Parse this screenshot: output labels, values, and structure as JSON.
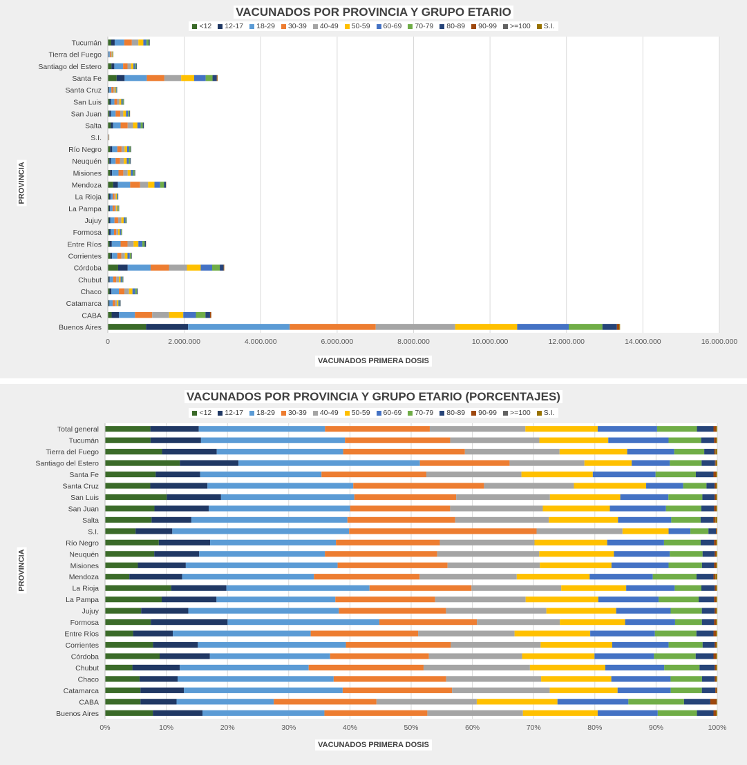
{
  "legend": {
    "labels": [
      "<12",
      "12-17",
      "18-29",
      "30-39",
      "40-49",
      "50-59",
      "60-69",
      "70-79",
      "80-89",
      "90-99",
      ">=100",
      "S.I."
    ],
    "colors": [
      "#3b6b29",
      "#203864",
      "#5b9bd5",
      "#ed7d31",
      "#a5a5a5",
      "#ffc000",
      "#4472c4",
      "#70ad47",
      "#264478",
      "#9e480e",
      "#636363",
      "#997300"
    ]
  },
  "chart_data": [
    {
      "type": "bar",
      "orientation": "horizontal",
      "stacked": true,
      "title": "VACUNADOS POR PROVINCIA Y GRUPO ETARIO",
      "xlabel": "VACUNADOS PRIMERA  DOSIS",
      "ylabel": "PROVINCIA",
      "xlim": [
        0,
        16000000
      ],
      "xticks": [
        0,
        2000000,
        4000000,
        6000000,
        8000000,
        10000000,
        12000000,
        14000000,
        16000000
      ],
      "xtick_labels": [
        "0",
        "2.000.000",
        "4.000.000",
        "6.000.000",
        "8.000.000",
        "10.000.000",
        "12.000.000",
        "14.000.000",
        "16.000.000"
      ],
      "categories": [
        "Tucumán",
        "Tierra del Fuego",
        "Santiago del Estero",
        "Santa Fe",
        "Santa Cruz",
        "San Luis",
        "San Juan",
        "Salta",
        "S.I.",
        "Río Negro",
        "Neuquén",
        "Misiones",
        "Mendoza",
        "La Rioja",
        "La Pampa",
        "Jujuy",
        "Formosa",
        "Entre Ríos",
        "Corrientes",
        "Córdoba",
        "Chubut",
        "Chaco",
        "Catamarca",
        "CABA",
        "Buenos Aires"
      ],
      "series": [
        {
          "name": "<12",
          "values": [
            90000,
            12000,
            95000,
            230000,
            17000,
            45000,
            40000,
            75000,
            3000,
            60000,
            40000,
            60000,
            140000,
            35000,
            30000,
            30000,
            35000,
            45000,
            65000,
            270000,
            20000,
            45000,
            20000,
            100000,
            1000000
          ]
        },
        {
          "name": "12-17",
          "values": [
            90000,
            10000,
            75000,
            210000,
            22000,
            38000,
            45000,
            60000,
            3000,
            55000,
            40000,
            50000,
            125000,
            35000,
            30000,
            35000,
            37000,
            60000,
            45000,
            250000,
            30000,
            50000,
            23000,
            190000,
            1100000
          ]
        },
        {
          "name": "18-29",
          "values": [
            250000,
            30000,
            230000,
            580000,
            55000,
            90000,
            120000,
            200000,
            12000,
            135000,
            125000,
            170000,
            320000,
            60000,
            65000,
            110000,
            90000,
            230000,
            140000,
            600000,
            90000,
            195000,
            85000,
            420000,
            2660000
          ]
        },
        {
          "name": "30-39",
          "values": [
            200000,
            28000,
            115000,
            460000,
            50000,
            70000,
            120000,
            185000,
            9000,
            110000,
            115000,
            125000,
            260000,
            45000,
            55000,
            95000,
            60000,
            180000,
            105000,
            480000,
            80000,
            145000,
            60000,
            450000,
            2250000
          ]
        },
        {
          "name": "40-49",
          "values": [
            170000,
            25000,
            95000,
            440000,
            35000,
            60000,
            80000,
            140000,
            5000,
            80000,
            100000,
            115000,
            210000,
            35000,
            40000,
            85000,
            50000,
            160000,
            90000,
            470000,
            70000,
            120000,
            50000,
            445000,
            2080000
          ]
        },
        {
          "name": "50-59",
          "values": [
            130000,
            18000,
            60000,
            340000,
            30000,
            50000,
            70000,
            115000,
            3000,
            65000,
            75000,
            80000,
            165000,
            25000,
            35000,
            60000,
            42000,
            125000,
            70000,
            360000,
            45000,
            90000,
            40000,
            370000,
            1620000
          ]
        },
        {
          "name": "60-69",
          "values": [
            80000,
            10000,
            45000,
            300000,
            20000,
            35000,
            55000,
            85000,
            2000,
            55000,
            55000,
            60000,
            150000,
            20000,
            20000,
            45000,
            32000,
            105000,
            60000,
            300000,
            40000,
            75000,
            30000,
            330000,
            1350000
          ]
        },
        {
          "name": "70-79",
          "values": [
            60000,
            8000,
            30000,
            180000,
            12000,
            25000,
            35000,
            55000,
            1000,
            35000,
            35000,
            40000,
            100000,
            13000,
            15000,
            25000,
            20000,
            60000,
            35000,
            200000,
            20000,
            40000,
            18000,
            250000,
            880000
          ]
        },
        {
          "name": "80-89",
          "values": [
            25000,
            4000,
            15000,
            110000,
            5000,
            10000,
            15000,
            25000,
            300,
            15000,
            15000,
            15000,
            50000,
            5000,
            6000,
            10000,
            8000,
            30000,
            15000,
            100000,
            10000,
            20000,
            8000,
            120000,
            380000
          ]
        },
        {
          "name": "90-99",
          "values": [
            2000,
            300,
            1000,
            15000,
            500,
            800,
            1500,
            3000,
            30,
            1500,
            1200,
            1500,
            5000,
            500,
            800,
            1000,
            800,
            4000,
            1500,
            13000,
            1000,
            2000,
            800,
            30000,
            60000
          ]
        },
        {
          "name": ">=100",
          "values": [
            100,
            20,
            50,
            500,
            20,
            30,
            50,
            100,
            2,
            50,
            50,
            50,
            200,
            20,
            30,
            50,
            30,
            100,
            50,
            500,
            30,
            50,
            20,
            1000,
            2000
          ]
        },
        {
          "name": "S.I.",
          "values": [
            1000,
            500,
            500,
            6000,
            300,
            500,
            700,
            1500,
            20,
            600,
            400,
            600,
            3000,
            300,
            300,
            500,
            400,
            1500,
            800,
            5000,
            300,
            500,
            200,
            2000,
            20000
          ]
        }
      ]
    },
    {
      "type": "bar",
      "orientation": "horizontal",
      "stacked": true,
      "normalized": "percent",
      "title": "VACUNADOS POR PROVINCIA Y GRUPO ETARIO (PORCENTAJES)",
      "xlabel": "VACUNADOS PRIMERA  DOSIS",
      "ylabel": "PROVINCIA",
      "xlim": [
        0,
        100
      ],
      "xticks": [
        0,
        10,
        20,
        30,
        40,
        50,
        60,
        70,
        80,
        90,
        100
      ],
      "xtick_labels": [
        "0%",
        "10%",
        "20%",
        "30%",
        "40%",
        "50%",
        "60%",
        "70%",
        "80%",
        "90%",
        "100%"
      ],
      "categories": [
        "Total general",
        "Tucumán",
        "Tierra del Fuego",
        "Santiago del Estero",
        "Santa Fe",
        "Santa Cruz",
        "San Luis",
        "San Juan",
        "Salta",
        "S.I.",
        "Río Negro",
        "Neuquén",
        "Misiones",
        "Mendoza",
        "La Rioja",
        "La Pampa",
        "Jujuy",
        "Formosa",
        "Entre Ríos",
        "Corrientes",
        "Córdoba",
        "Chubut",
        "Chaco",
        "Catamarca",
        "CABA",
        "Buenos Aires"
      ],
      "series": [
        {
          "name": "<12",
          "values": [
            7.4,
            7.4,
            9.7,
            10.6,
            8.3,
            7.2,
            10.0,
            8.1,
            7.6,
            4.9,
            8.8,
            8.1,
            5.4,
            4.0,
            10.9,
            9.2,
            5.9,
            7.5,
            4.6,
            7.9,
            8.9,
            4.5,
            5.7,
            5.8,
            5.8,
            7.8
          ]
        },
        {
          "name": "12-17",
          "values": [
            7.9,
            8.2,
            9.3,
            8.3,
            7.3,
            9.1,
            8.8,
            8.9,
            6.5,
            5.9,
            8.4,
            7.4,
            7.9,
            8.7,
            9.1,
            8.9,
            7.7,
            12.6,
            6.5,
            7.4,
            8.2,
            7.8,
            6.3,
            7.1,
            5.9,
            8.1
          ]
        },
        {
          "name": "18-29",
          "values": [
            20.6,
            23.4,
            21.5,
            25.7,
            19.9,
            23.2,
            21.6,
            23.2,
            25.5,
            28.4,
            20.6,
            20.7,
            25.0,
            21.7,
            23.6,
            19.3,
            24.6,
            24.9,
            22.6,
            24.4,
            19.6,
            21.2,
            25.8,
            26.0,
            15.9,
            19.9
          ]
        },
        {
          "name": "30-39",
          "values": [
            17.1,
            17.1,
            20.7,
            12.7,
            17.2,
            20.8,
            16.5,
            16.4,
            17.6,
            30.1,
            17.0,
            18.5,
            18.1,
            17.4,
            16.8,
            16.2,
            17.5,
            16.0,
            17.6,
            17.3,
            16.1,
            18.9,
            18.6,
            17.9,
            16.8,
            16.8
          ]
        },
        {
          "name": "40-49",
          "values": [
            15.6,
            14.5,
            16.1,
            10.6,
            15.6,
            14.3,
            15.2,
            15.2,
            15.3,
            13.8,
            15.5,
            16.8,
            15.2,
            16.0,
            14.8,
            14.7,
            16.4,
            13.6,
            15.8,
            14.8,
            15.2,
            17.5,
            15.7,
            16.0,
            16.4,
            15.6
          ]
        },
        {
          "name": "50-59",
          "values": [
            11.8,
            11.2,
            11.5,
            6.7,
            11.7,
            11.5,
            11.4,
            11.0,
            11.3,
            7.4,
            11.9,
            12.3,
            11.8,
            12.0,
            10.7,
            11.8,
            11.4,
            10.7,
            12.4,
            11.8,
            11.8,
            12.4,
            11.6,
            11.1,
            13.2,
            12.2
          ]
        },
        {
          "name": "60-69",
          "values": [
            9.7,
            9.8,
            8.0,
            5.4,
            10.3,
            5.9,
            7.8,
            9.2,
            8.7,
            3.5,
            9.3,
            9.2,
            9.4,
            10.4,
            8.0,
            9.8,
            8.9,
            8.2,
            10.6,
            9.3,
            9.7,
            9.7,
            9.8,
            8.7,
            11.6,
            9.8
          ]
        },
        {
          "name": "70-79",
          "values": [
            6.5,
            5.3,
            5.1,
            4.5,
            6.6,
            3.7,
            5.5,
            5.8,
            4.8,
            2.9,
            6.0,
            5.4,
            5.5,
            7.2,
            4.4,
            6.5,
            5.1,
            4.4,
            6.8,
            5.6,
            6.8,
            5.8,
            5.2,
            5.1,
            9.1,
            6.4
          ]
        },
        {
          "name": "80-89",
          "values": [
            2.7,
            2.1,
            1.7,
            1.9,
            2.9,
            1.3,
            2.0,
            2.1,
            2.1,
            1.2,
            2.2,
            2.0,
            2.0,
            2.8,
            2.2,
            2.5,
            2.1,
            2.0,
            2.8,
            2.0,
            2.9,
            2.5,
            2.1,
            2.2,
            4.3,
            2.7
          ]
        },
        {
          "name": "90-99",
          "values": [
            0.4,
            0.3,
            0.2,
            0.1,
            0.4,
            0.2,
            0.2,
            0.3,
            0.3,
            0.1,
            0.3,
            0.2,
            0.3,
            0.3,
            0.2,
            0.3,
            0.2,
            0.3,
            0.4,
            0.2,
            0.4,
            0.2,
            0.2,
            0.2,
            1.0,
            0.4
          ]
        },
        {
          "name": ">=100",
          "values": [
            0.02,
            0.02,
            0.02,
            0.02,
            0.02,
            0.02,
            0.02,
            0.02,
            0.02,
            0.02,
            0.02,
            0.02,
            0.02,
            0.02,
            0.02,
            0.02,
            0.02,
            0.02,
            0.02,
            0.02,
            0.02,
            0.02,
            0.02,
            0.02,
            0.04,
            0.02
          ]
        },
        {
          "name": "S.I.",
          "values": [
            0.2,
            0.2,
            0.3,
            0.2,
            0.2,
            0.2,
            0.2,
            0.2,
            0.3,
            0.1,
            0.2,
            0.2,
            0.2,
            0.3,
            0.2,
            0.2,
            0.2,
            0.2,
            0.2,
            0.2,
            0.2,
            0.2,
            0.2,
            0.1,
            0.1,
            0.2
          ]
        }
      ]
    }
  ]
}
